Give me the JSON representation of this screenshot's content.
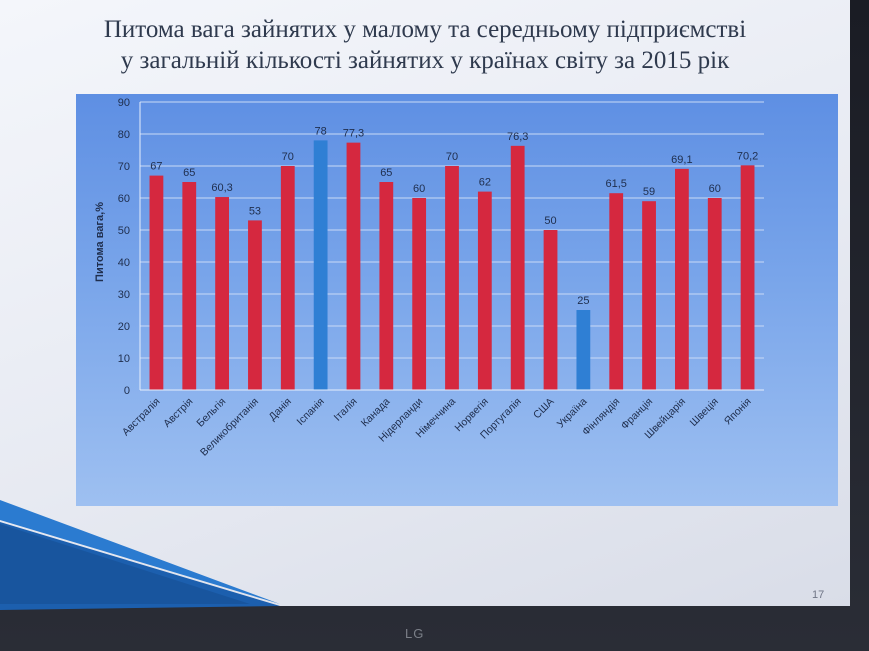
{
  "title_lines": [
    "Питома вага зайнятих у малому та середньому підприємстві",
    "у загальній кількості зайнятих у країнах світу за 2015 рік"
  ],
  "page_number": "17",
  "monitor_logo": "LG",
  "colors": {
    "bar_primary": "#d5283f",
    "bar_highlight": "#2f7fd4",
    "plot_background": "#6f9ee8"
  },
  "chart_data": {
    "type": "bar",
    "categories": [
      "Австралія",
      "Австрія",
      "Бельгія",
      "Великобританія",
      "Данія",
      "Іспанія",
      "Італія",
      "Канада",
      "Нідерланди",
      "Німеччина",
      "Норвегія",
      "Португалія",
      "США",
      "Україна",
      "Фінляндія",
      "Франція",
      "Швейцарія",
      "Швеція",
      "Японія"
    ],
    "values": [
      67,
      65,
      60.3,
      53,
      70,
      78,
      77.3,
      65,
      60,
      70,
      62,
      76.3,
      50,
      25,
      61.5,
      59,
      69.1,
      60,
      70.2
    ],
    "value_labels": [
      "67",
      "65",
      "60,3",
      "53",
      "70",
      "78",
      "77,3",
      "65",
      "60",
      "70",
      "62",
      "76,3",
      "50",
      "25",
      "61,5",
      "59",
      "69,1",
      "60",
      "70,2"
    ],
    "highlighted_categories": [
      "Іспанія",
      "Україна"
    ],
    "ylabel": "Питома вага,%",
    "xlabel": "",
    "ylim": [
      0,
      90
    ],
    "yticks": [
      0,
      10,
      20,
      30,
      40,
      50,
      60,
      70,
      80,
      90
    ],
    "grid": true,
    "legend": "none"
  }
}
